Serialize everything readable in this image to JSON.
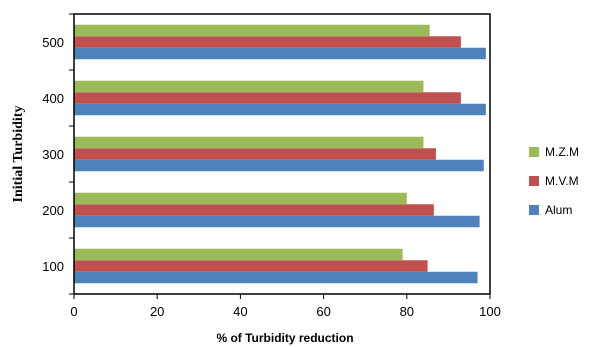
{
  "chart_data": {
    "type": "bar",
    "orientation": "horizontal",
    "title": "",
    "xlabel": "% of  Turbidity reduction",
    "ylabel": "Initial Turbidity",
    "categories": [
      "100",
      "200",
      "300",
      "400",
      "500"
    ],
    "xlim": [
      0,
      100
    ],
    "xticks": [
      "0",
      "20",
      "40",
      "60",
      "80",
      "100"
    ],
    "grid": false,
    "legend_position": "right",
    "series": [
      {
        "name": "Alum",
        "color": "#4f81bd",
        "values": [
          97,
          97.5,
          98.5,
          99,
          99
        ]
      },
      {
        "name": "M.V.M",
        "color": "#c0504d",
        "values": [
          85,
          86.5,
          87,
          93,
          93
        ]
      },
      {
        "name": "M.Z.M",
        "color": "#9bbb59",
        "values": [
          79,
          80,
          84,
          84,
          85.5
        ]
      }
    ],
    "legend_order": [
      "M.Z.M",
      "M.V.M",
      "Alum"
    ]
  }
}
